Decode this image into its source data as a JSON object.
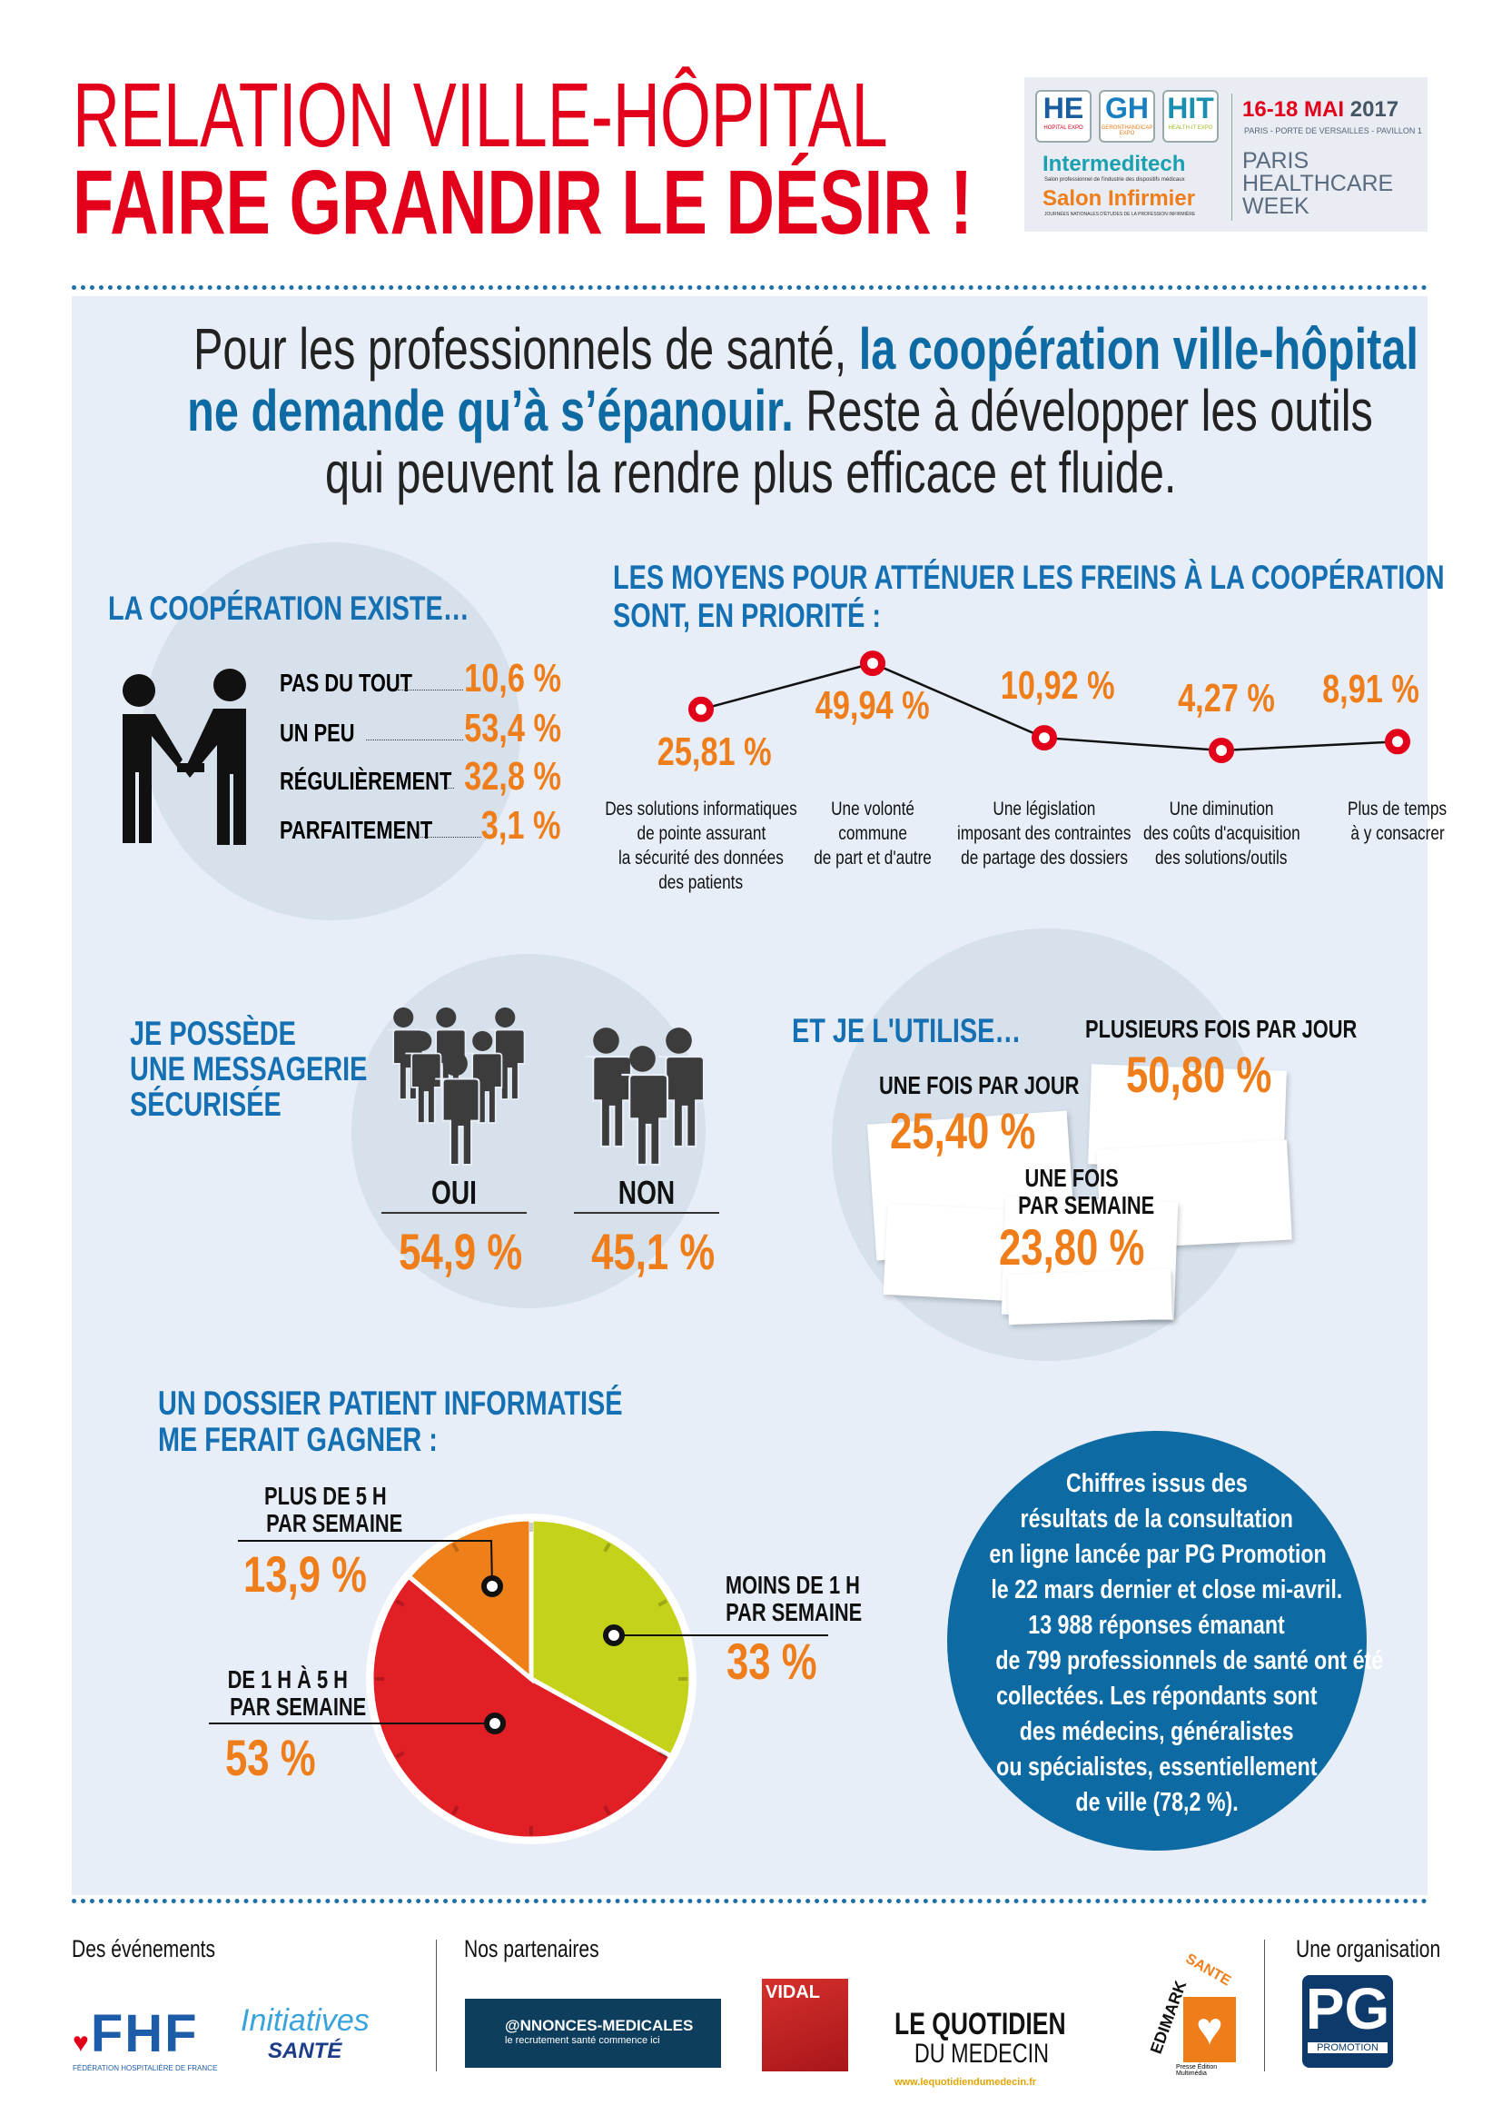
{
  "header": {
    "title_line1": "RELATION VILLE-HÔPITAL",
    "title_line2": "FAIRE GRANDIR LE DÉSIR !"
  },
  "event_logo": {
    "logos": [
      "HE",
      "GH",
      "HIT"
    ],
    "logo_subs": [
      "HOPITAL EXPO",
      "GERONTHANDICAP EXPO",
      "HEALTH-IT EXPO"
    ],
    "intermeditech": "Intermeditech",
    "intermeditech_sub": "Salon professionnel de l'industrie des dispositifs médicaux",
    "salon": "Salon Infirmier",
    "salon_sub": "JOURNÉES NATIONALES D'ÉTUDES DE LA PROFESSION INFIRMIÈRE",
    "dates": "16-18 MAI",
    "year": "2017",
    "place": "PARIS - PORTE DE VERSAILLES - PAVILLON 1",
    "week": [
      "PARIS",
      "HEALTHCARE",
      "WEEK"
    ]
  },
  "intro": {
    "part1": "Pour les professionnels de santé, ",
    "bold1": "la coopération ville-hôpital",
    "bold2": "ne demande qu’à s’épanouir.",
    "part2": " Reste à développer les outils",
    "part3": "qui peuvent la rendre plus efficace et fluide."
  },
  "cooperation": {
    "title": "LA COOPÉRATION EXISTE…",
    "rows": [
      {
        "label": "PAS DU TOUT",
        "value": "10,6 %"
      },
      {
        "label": "UN PEU",
        "value": "53,4 %"
      },
      {
        "label": "RÉGULIÈREMENT",
        "value": "32,8 %"
      },
      {
        "label": "PARFAITEMENT",
        "value": "3,1 %"
      }
    ]
  },
  "chart_data": {
    "type": "line",
    "title": "LES MOYENS POUR ATTÉNUER LES FREINS À LA COOPÉRATION SONT, EN PRIORITÉ :",
    "title_line1": "LES MOYENS POUR ATTÉNUER LES FREINS À LA COOPÉRATION",
    "title_line2": "SONT, EN PRIORITÉ :",
    "categories": [
      "Des solutions informatiques de pointe assurant la sécurité des données des patients",
      "Une volonté commune de part et d'autre",
      "Une législation imposant des contraintes de partage des dossiers",
      "Une diminution des coûts d'acquisition des solutions/outils",
      "Plus de temps à y consacrer"
    ],
    "category_lines": [
      [
        "Des solutions informatiques",
        "de pointe assurant",
        "la sécurité des données",
        "des patients"
      ],
      [
        "Une volonté",
        "commune",
        "de part et d'autre"
      ],
      [
        "Une législation",
        "imposant des contraintes",
        "de partage des dossiers"
      ],
      [
        "Une diminution",
        "des coûts d'acquisition",
        "des solutions/outils"
      ],
      [
        "Plus de temps",
        "à y consacrer"
      ]
    ],
    "values": [
      25.81,
      49.94,
      10.92,
      4.27,
      8.91
    ],
    "labels": [
      "25,81 %",
      "49,94 %",
      "10,92 %",
      "4,27 %",
      "8,91 %"
    ],
    "colors": {
      "marker": "#e2001a",
      "line": "#111111",
      "label": "#ef7d1a"
    }
  },
  "messagerie": {
    "title_lines": [
      "JE POSSÈDE",
      "UNE MESSAGERIE",
      "SÉCURISÉE"
    ],
    "oui_label": "OUI",
    "oui_value": "54,9 %",
    "non_label": "NON",
    "non_value": "45,1 %"
  },
  "usage": {
    "title": "ET JE L'UTILISE…",
    "items": [
      {
        "label": "PLUSIEURS FOIS PAR JOUR",
        "value": "50,80 %"
      },
      {
        "label": "UNE FOIS PAR JOUR",
        "value": "25,40 %"
      },
      {
        "label_lines": [
          "UNE FOIS",
          "PAR SEMAINE"
        ],
        "value": "23,80 %"
      }
    ]
  },
  "dossier": {
    "title_lines": [
      "UN DOSSIER PATIENT INFORMATISÉ",
      "ME FERAIT GAGNER :"
    ],
    "slices": [
      {
        "label_lines": [
          "MOINS DE 1 H",
          "PAR SEMAINE"
        ],
        "value": 33,
        "text": "33 %",
        "color": "#c5d21a"
      },
      {
        "label_lines": [
          "DE 1 H À 5 H",
          "PAR SEMAINE"
        ],
        "value": 53,
        "text": "53 %",
        "color": "#e31f26"
      },
      {
        "label_lines": [
          "PLUS DE 5 H",
          "PAR SEMAINE"
        ],
        "value": 13.9,
        "text": "13,9 %",
        "color": "#ef8019"
      }
    ]
  },
  "source": {
    "lines": [
      "Chiffres issus des",
      "résultats de la consultation",
      "en ligne lancée par PG Promotion",
      "le 22 mars dernier et close mi-avril.",
      "13 988 réponses émanant",
      "de 799 professionnels de santé ont été",
      "collectées. Les répondants sont",
      "des médecins, généralistes",
      "ou spécialistes, essentiellement",
      "de ville (78,2 %)."
    ]
  },
  "footer": {
    "events_label": "Des événements",
    "partners_label": "Nos partenaires",
    "org_label": "Une organisation",
    "fhf": "FHF",
    "fhf_sub": "FÉDÉRATION HOSPITALIÈRE DE FRANCE",
    "initiatives": "Initiatives",
    "initiatives_sub": "SANTÉ",
    "annonces": "@NNONCES-MEDICALES",
    "annonces_sub": "le recrutement santé commence ici",
    "vidal": "VIDAL",
    "quotidien1": "LE QUOTIDIEN",
    "quotidien2": "DU MEDECIN",
    "quotidien_url": "www.lequotidiendumedecin.fr",
    "edimark": "EDIMARK",
    "edimark2": "SANTE",
    "edimark_sub": "Presse Édition Multimédia",
    "pg": "PG",
    "pg_sub": "PROMOTION"
  }
}
